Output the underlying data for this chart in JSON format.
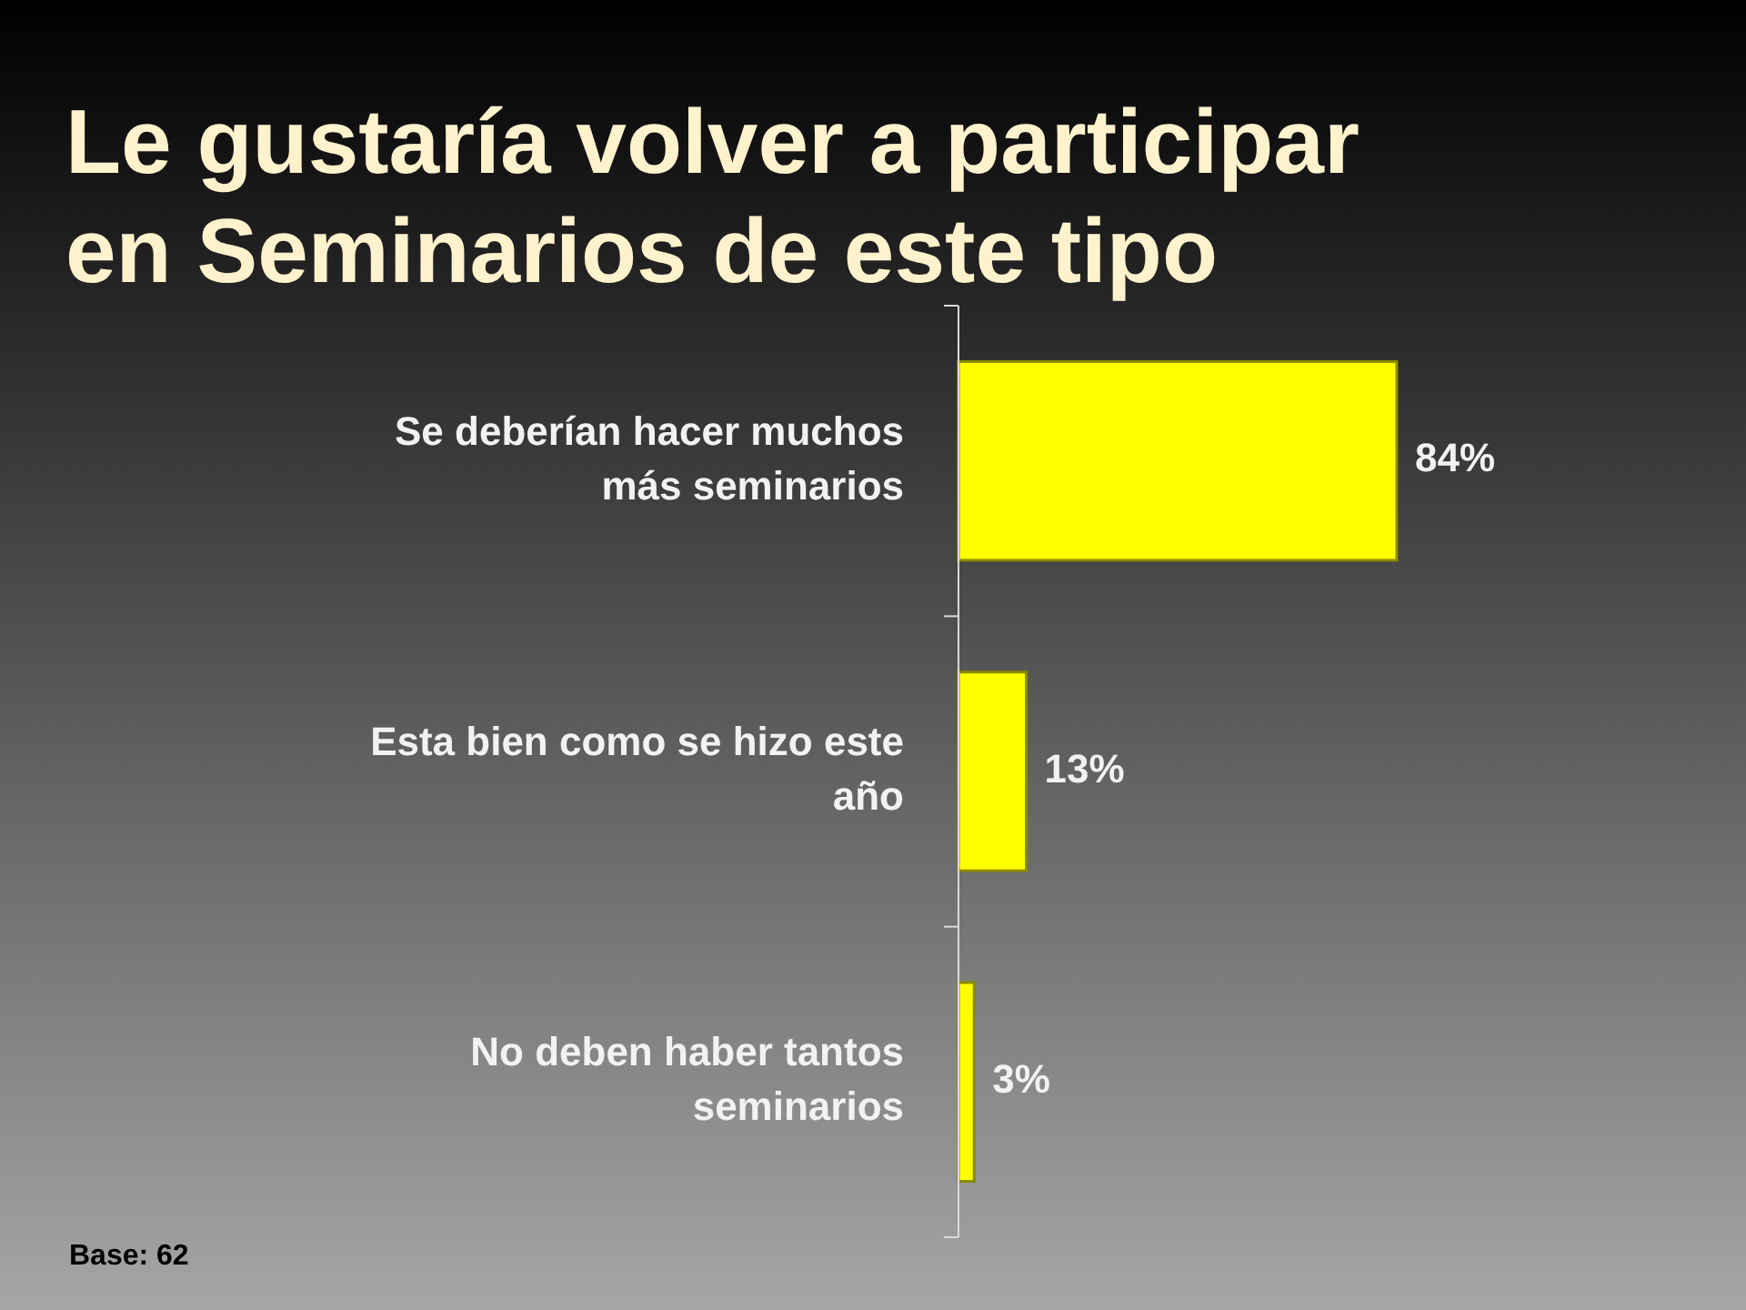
{
  "chart_data": {
    "type": "bar",
    "orientation": "horizontal",
    "title": "Le gustaría volver a participar en Seminarios de este tipo",
    "categories": [
      "Se deberían hacer muchos más seminarios",
      "Esta bien como se hizo este año",
      "No deben haber tantos seminarios"
    ],
    "values": [
      84,
      13,
      3
    ],
    "color": "#ffff00",
    "value_labels": [
      "84%",
      "13%",
      "3%"
    ],
    "annotations": [
      "Base: 62"
    ]
  }
}
